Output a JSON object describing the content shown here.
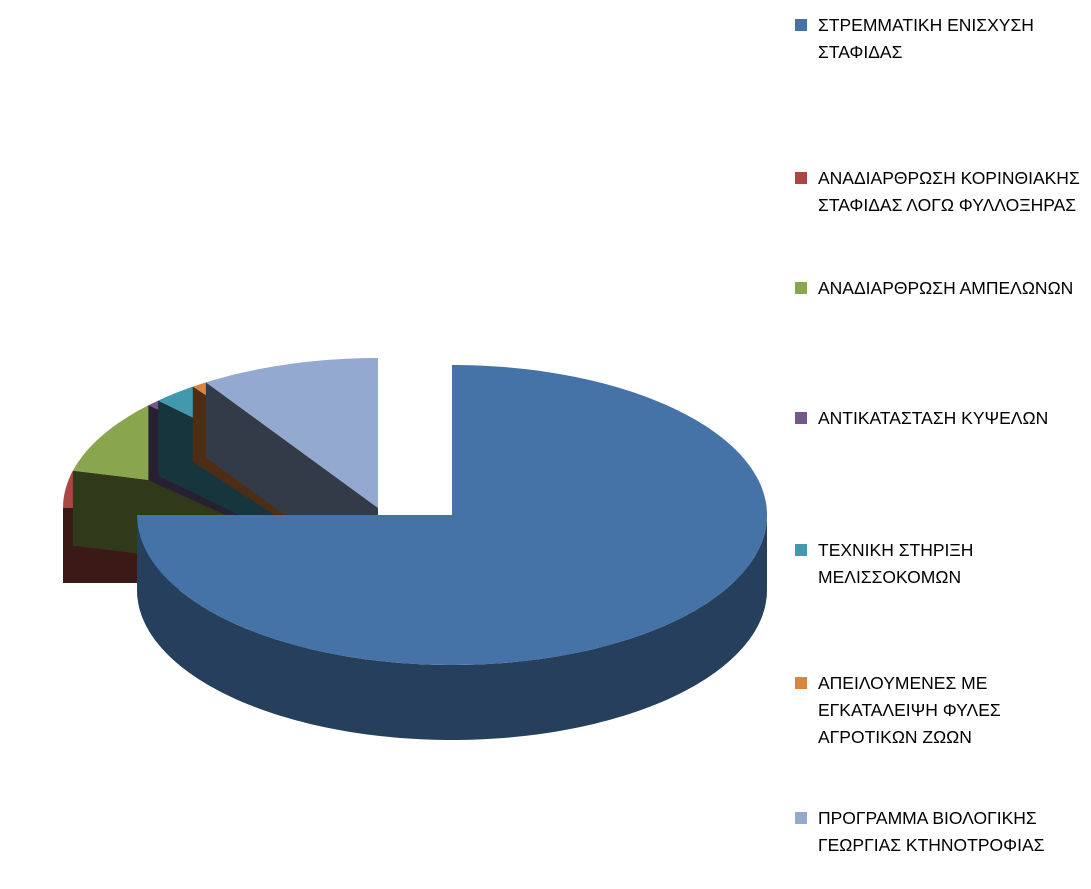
{
  "chart_data": {
    "type": "pie3d",
    "categories": [
      "ΣΤΡΕΜΜΑΤΙΚΗ ΕΝΙΣΧΥΣΗ ΣΤΑΦΙΔΑΣ",
      "ΑΝΑΔΙΑΡΘΡΩΣΗ ΚΟΡΙΝΘΙΑΚΗΣ ΣΤΑΦΙΔΑΣ ΛΟΓΩ ΦΥΛΛΟΞΗΡΑΣ",
      "ΑΝΑΔΙΑΡΘΡΩΣΗ ΑΜΠΕΛΩΝΩΝ",
      "ΑΝΤΙΚΑΤΑΣΤΑΣΗ ΚΥΨΕΛΩΝ",
      "ΤΕΧΝΙΚΗ ΣΤΗΡΙΞΗ ΜΕΛΙΣΣΟΚΟΜΩΝ",
      "ΑΠΕΙΛΟΥΜΕΝΕΣ ΜΕ ΕΓΚΑΤΑΛΕΙΨΗ ΦΥΛΕΣ ΑΓΡΟΤΙΚΩΝ ΖΩΩΝ",
      "ΠΡΟΓΡΑΜΜΑ ΒΙΟΛΟΓΙΚΗΣ ΓΕΩΡΓΙΑΣ ΚΤΗΝΟΤΡΟΦΙΑΣ"
    ],
    "values": [
      75,
      4,
      8,
      0.7,
      2.3,
      0.8,
      9.2
    ],
    "colors": [
      "#4572a7",
      "#aa4643",
      "#89a54e",
      "#71588f",
      "#4198af",
      "#db843d",
      "#93a9cf"
    ],
    "legend": "right"
  }
}
